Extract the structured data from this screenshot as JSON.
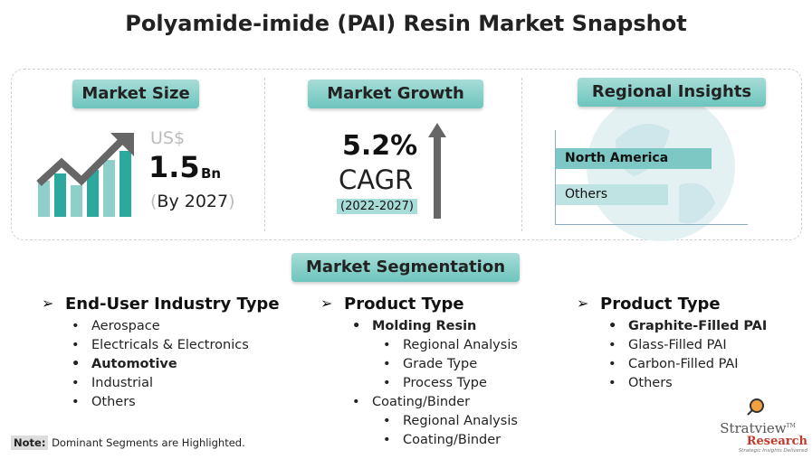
{
  "title": "Polyamide-imide (PAI) Resin Market Snapshot",
  "market_size": {
    "label": "Market Size",
    "currency": "US$",
    "value": "1.5",
    "unit": "Bn",
    "year": "By 2027",
    "paren_open": "(",
    "paren_close": ")"
  },
  "market_growth": {
    "label": "Market Growth",
    "value": "5.2%",
    "metric": "CAGR",
    "period": "(2022-2027)"
  },
  "regional": {
    "label": "Regional Insights",
    "bars": [
      {
        "name": "North America",
        "share": 0.85,
        "dominant": true
      },
      {
        "name": "Others",
        "share": 0.6,
        "dominant": false
      }
    ]
  },
  "segmentation": {
    "label": "Market Segmentation",
    "col1": {
      "heading": "End-User Industry Type",
      "items": [
        "Aerospace",
        "Electricals & Electronics",
        "Automotive",
        "Industrial",
        "Others"
      ]
    },
    "col2": {
      "heading": "Product Type",
      "items": [
        "Molding Resin",
        "Regional Analysis",
        "Grade Type",
        "Process Type",
        "Coating/Binder",
        "Regional Analysis",
        "Coating/Binder"
      ]
    },
    "col3": {
      "heading": "Product Type",
      "items": [
        "Graphite-Filled PAI",
        "Glass-Filled PAI",
        "Carbon-Filled PAI",
        "Others"
      ]
    }
  },
  "note": {
    "label": "Note:",
    "text": "Dominant Segments are Highlighted."
  },
  "logo": {
    "name": "Stratview",
    "sub": "Research",
    "tagline": "Strategic Insights Delivered",
    "tm": "TM"
  },
  "colors": {
    "teal": "#6cc5bd",
    "dark_teal": "#2aa99c",
    "light_teal": "#8fcfcb",
    "gray": "#666666"
  }
}
